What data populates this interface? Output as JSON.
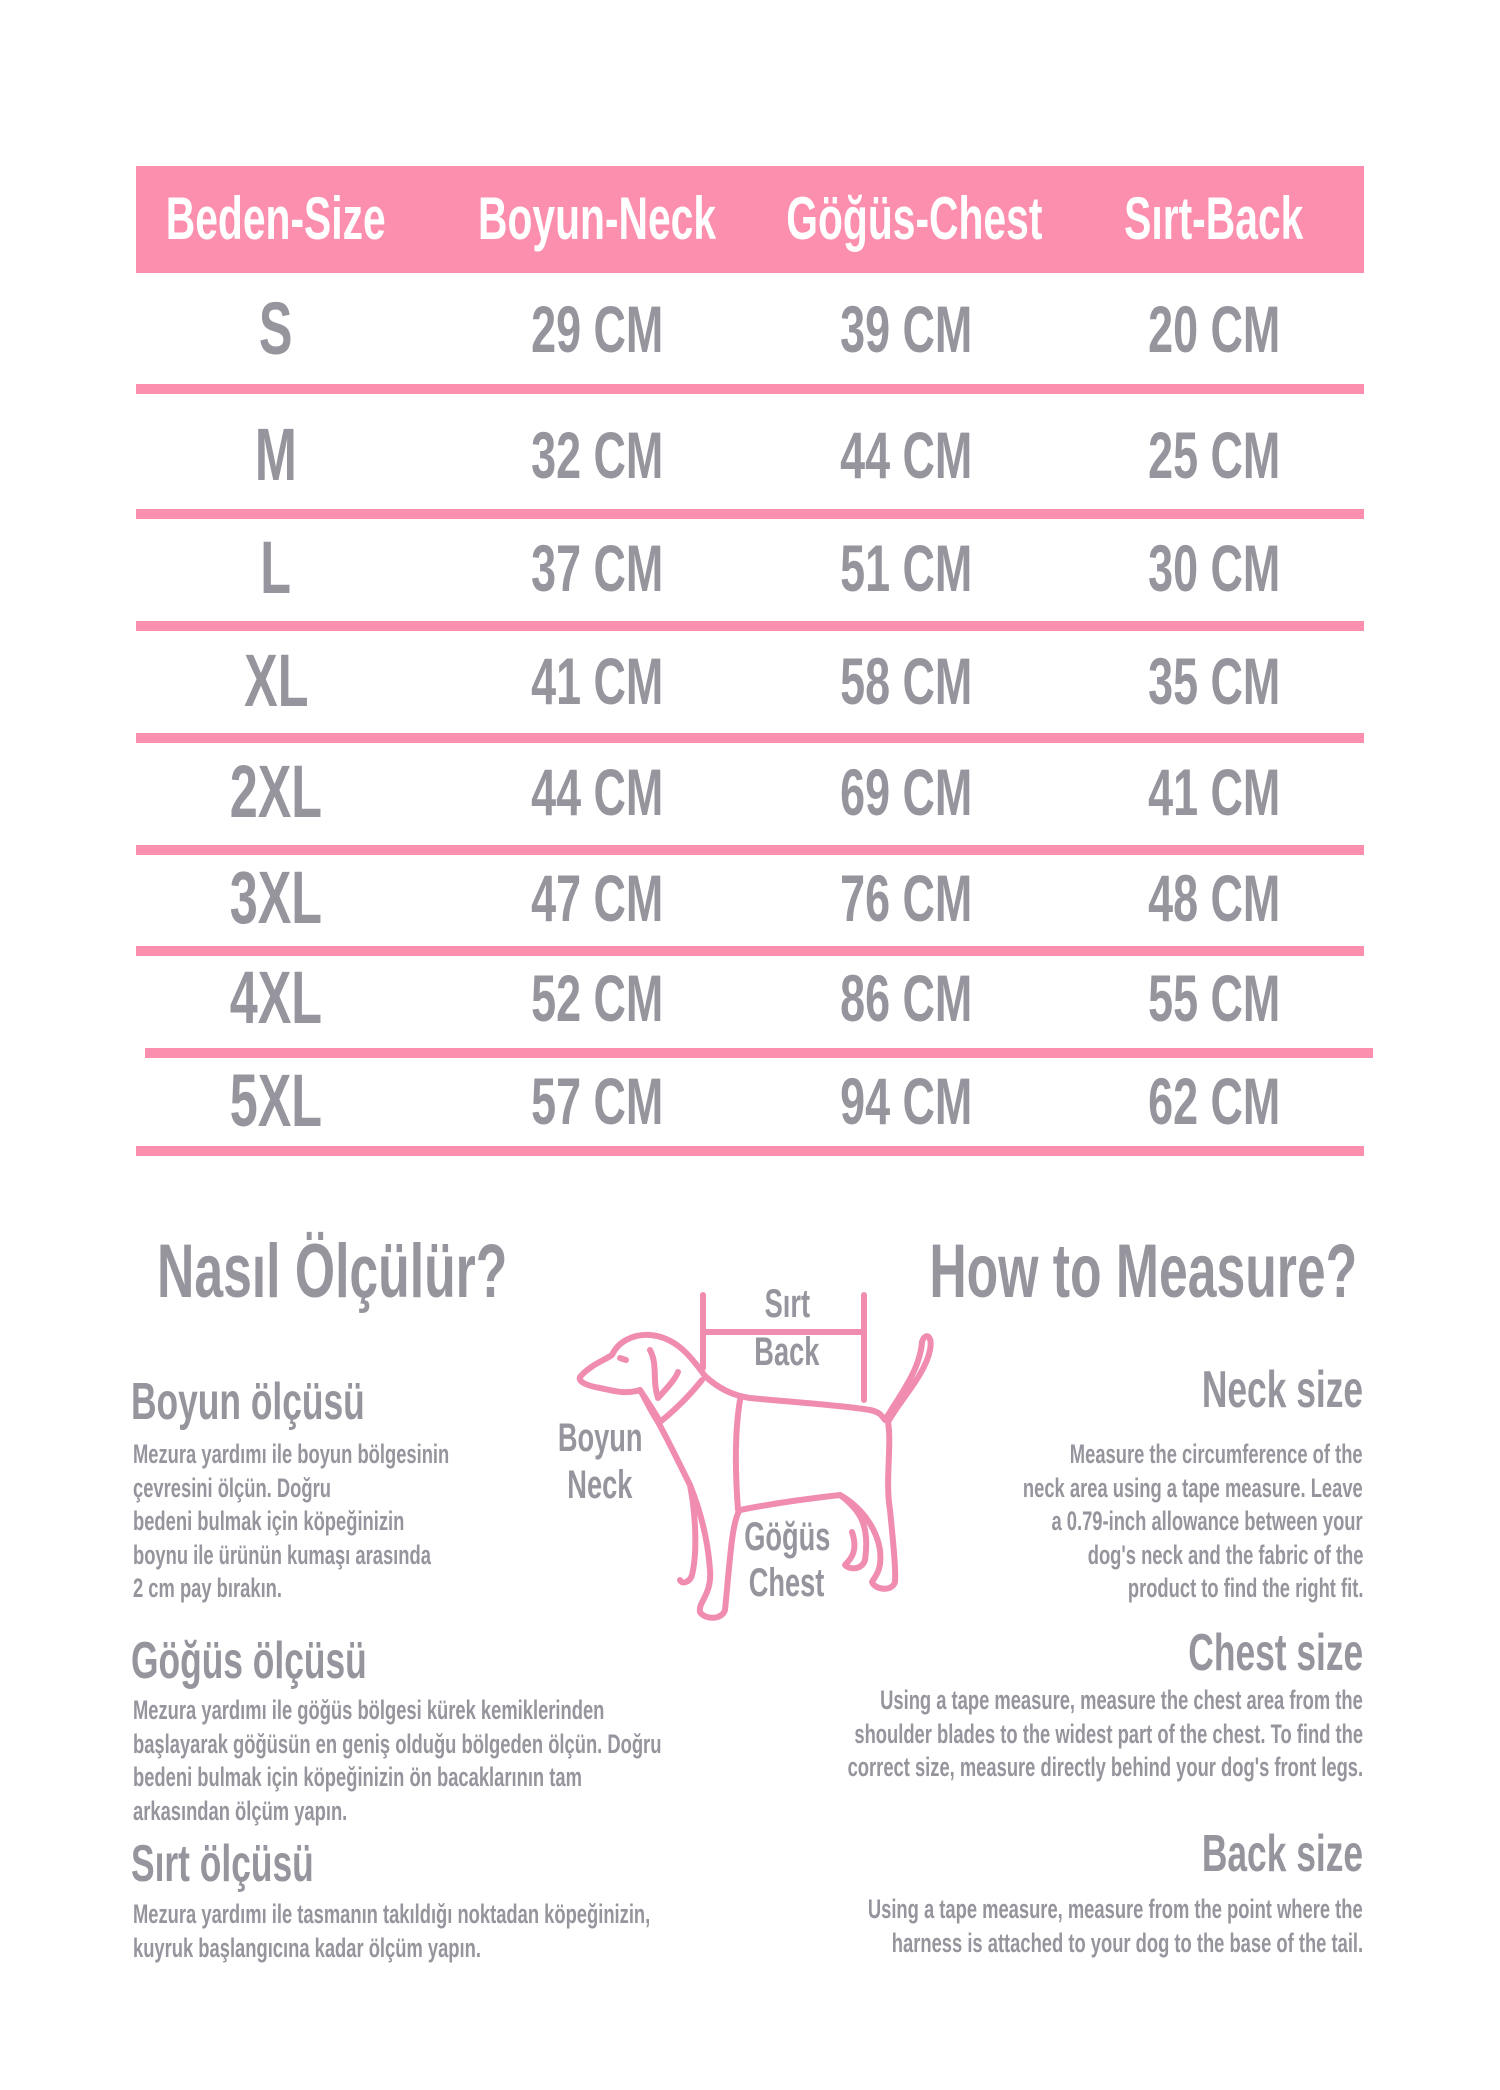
{
  "colors": {
    "accent": "#fc8fae",
    "text": "#96949c",
    "header_text": "#ffffff"
  },
  "table": {
    "headers": [
      "Beden-Size",
      "Boyun-Neck",
      "Göğüs-Chest",
      "Sırt-Back"
    ],
    "rows": [
      [
        "S",
        "29 CM",
        "39 CM",
        "20 CM"
      ],
      [
        "M",
        "32 CM",
        "44 CM",
        "25 CM"
      ],
      [
        "L",
        "37 CM",
        "51 CM",
        "30 CM"
      ],
      [
        "XL",
        "41 CM",
        "58 CM",
        "35 CM"
      ],
      [
        "2XL",
        "44 CM",
        "69 CM",
        "41 CM"
      ],
      [
        "3XL",
        "47 CM",
        "76 CM",
        "48 CM"
      ],
      [
        "4XL",
        "52 CM",
        "86 CM",
        "55 CM"
      ],
      [
        "5XL",
        "57 CM",
        "94 CM",
        "62 CM"
      ]
    ]
  },
  "turkish": {
    "title": "Nasıl Ölçülür?",
    "sections": [
      {
        "heading": "Boyun ölçüsü",
        "lines": [
          "Mezura yardımı ile boyun bölgesinin",
          "çevresini ölçün. Doğru",
          "bedeni bulmak için köpeğinizin",
          "boynu ile ürünün kumaşı arasında",
          "2 cm pay bırakın."
        ]
      },
      {
        "heading": "Göğüs ölçüsü",
        "lines": [
          "Mezura yardımı ile göğüs bölgesi kürek kemiklerinden",
          "başlayarak göğüsün en geniş olduğu bölgeden ölçün. Doğru",
          "bedeni bulmak için köpeğinizin ön bacaklarının tam",
          "arkasından ölçüm yapın."
        ]
      },
      {
        "heading": "Sırt ölçüsü",
        "lines": [
          "Mezura yardımı ile tasmanın takıldığı noktadan köpeğinizin,",
          "kuyruk başlangıcına kadar ölçüm yapın."
        ]
      }
    ]
  },
  "english": {
    "title": "How to Measure?",
    "sections": [
      {
        "heading": "Neck size",
        "lines": [
          "Measure the circumference of the",
          "neck area using a tape measure. Leave",
          "a 0.79-inch allowance between your",
          "dog's neck and the fabric of the",
          "product to find the right fit."
        ]
      },
      {
        "heading": "Chest size",
        "lines": [
          "Using a tape measure, measure the chest area from the",
          "shoulder blades to the widest part of the chest. To find the",
          "correct size, measure directly behind your dog's front legs."
        ]
      },
      {
        "heading": "Back size",
        "lines": [
          "Using a tape measure, measure from the point where the",
          "harness is attached to your dog to the base of the tail."
        ]
      }
    ]
  },
  "diagram": {
    "back_tr": "Sırt",
    "back_en": "Back",
    "neck_tr": "Boyun",
    "neck_en": "Neck",
    "chest_tr": "Göğüs",
    "chest_en": "Chest"
  }
}
